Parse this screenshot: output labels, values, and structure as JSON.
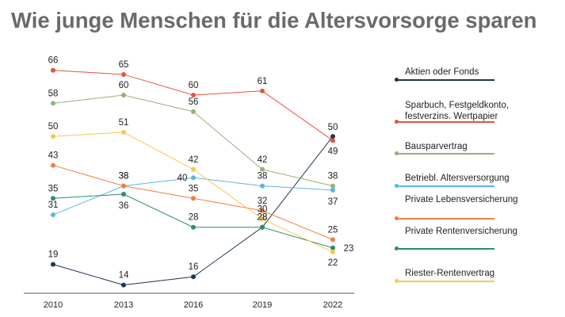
{
  "title": "Wie junge Menschen für die Altersvorsorge sparen",
  "chart_data": {
    "type": "line",
    "title": "Wie junge Menschen für die Altersvorsorge sparen",
    "x": [
      "2010",
      "2013",
      "2016",
      "2019",
      "2022"
    ],
    "xlabel": "",
    "ylabel": "",
    "ylim": [
      10,
      70
    ],
    "grid": false,
    "legend_position": "right",
    "series": [
      {
        "name": "Aktien oder Fonds",
        "color": "#1c3553",
        "values": [
          19,
          14,
          16,
          28,
          50
        ]
      },
      {
        "name": "Sparbuch, Festgeldkonto, festverzins. Wertpapier",
        "color": "#e5523f",
        "values": [
          66,
          65,
          60,
          61,
          49
        ]
      },
      {
        "name": "Bausparvertrag",
        "color": "#93b377",
        "values": [
          58,
          60,
          56,
          42,
          38
        ]
      },
      {
        "name": "Betriebl. Altersversorgung",
        "color": "#5bb7e0",
        "values": [
          31,
          38,
          40,
          38,
          37
        ]
      },
      {
        "name": "Private Lebensversicherung",
        "color": "#ee7f45",
        "values": [
          43,
          38,
          35,
          32,
          25
        ]
      },
      {
        "name": "Private Rentenversicherung",
        "color": "#2f8c6c",
        "values": [
          35,
          36,
          28,
          28,
          23
        ]
      },
      {
        "name": "Riester-Rentenvertrag",
        "color": "#f4c94e",
        "values": [
          50,
          51,
          42,
          30,
          22
        ]
      }
    ]
  }
}
